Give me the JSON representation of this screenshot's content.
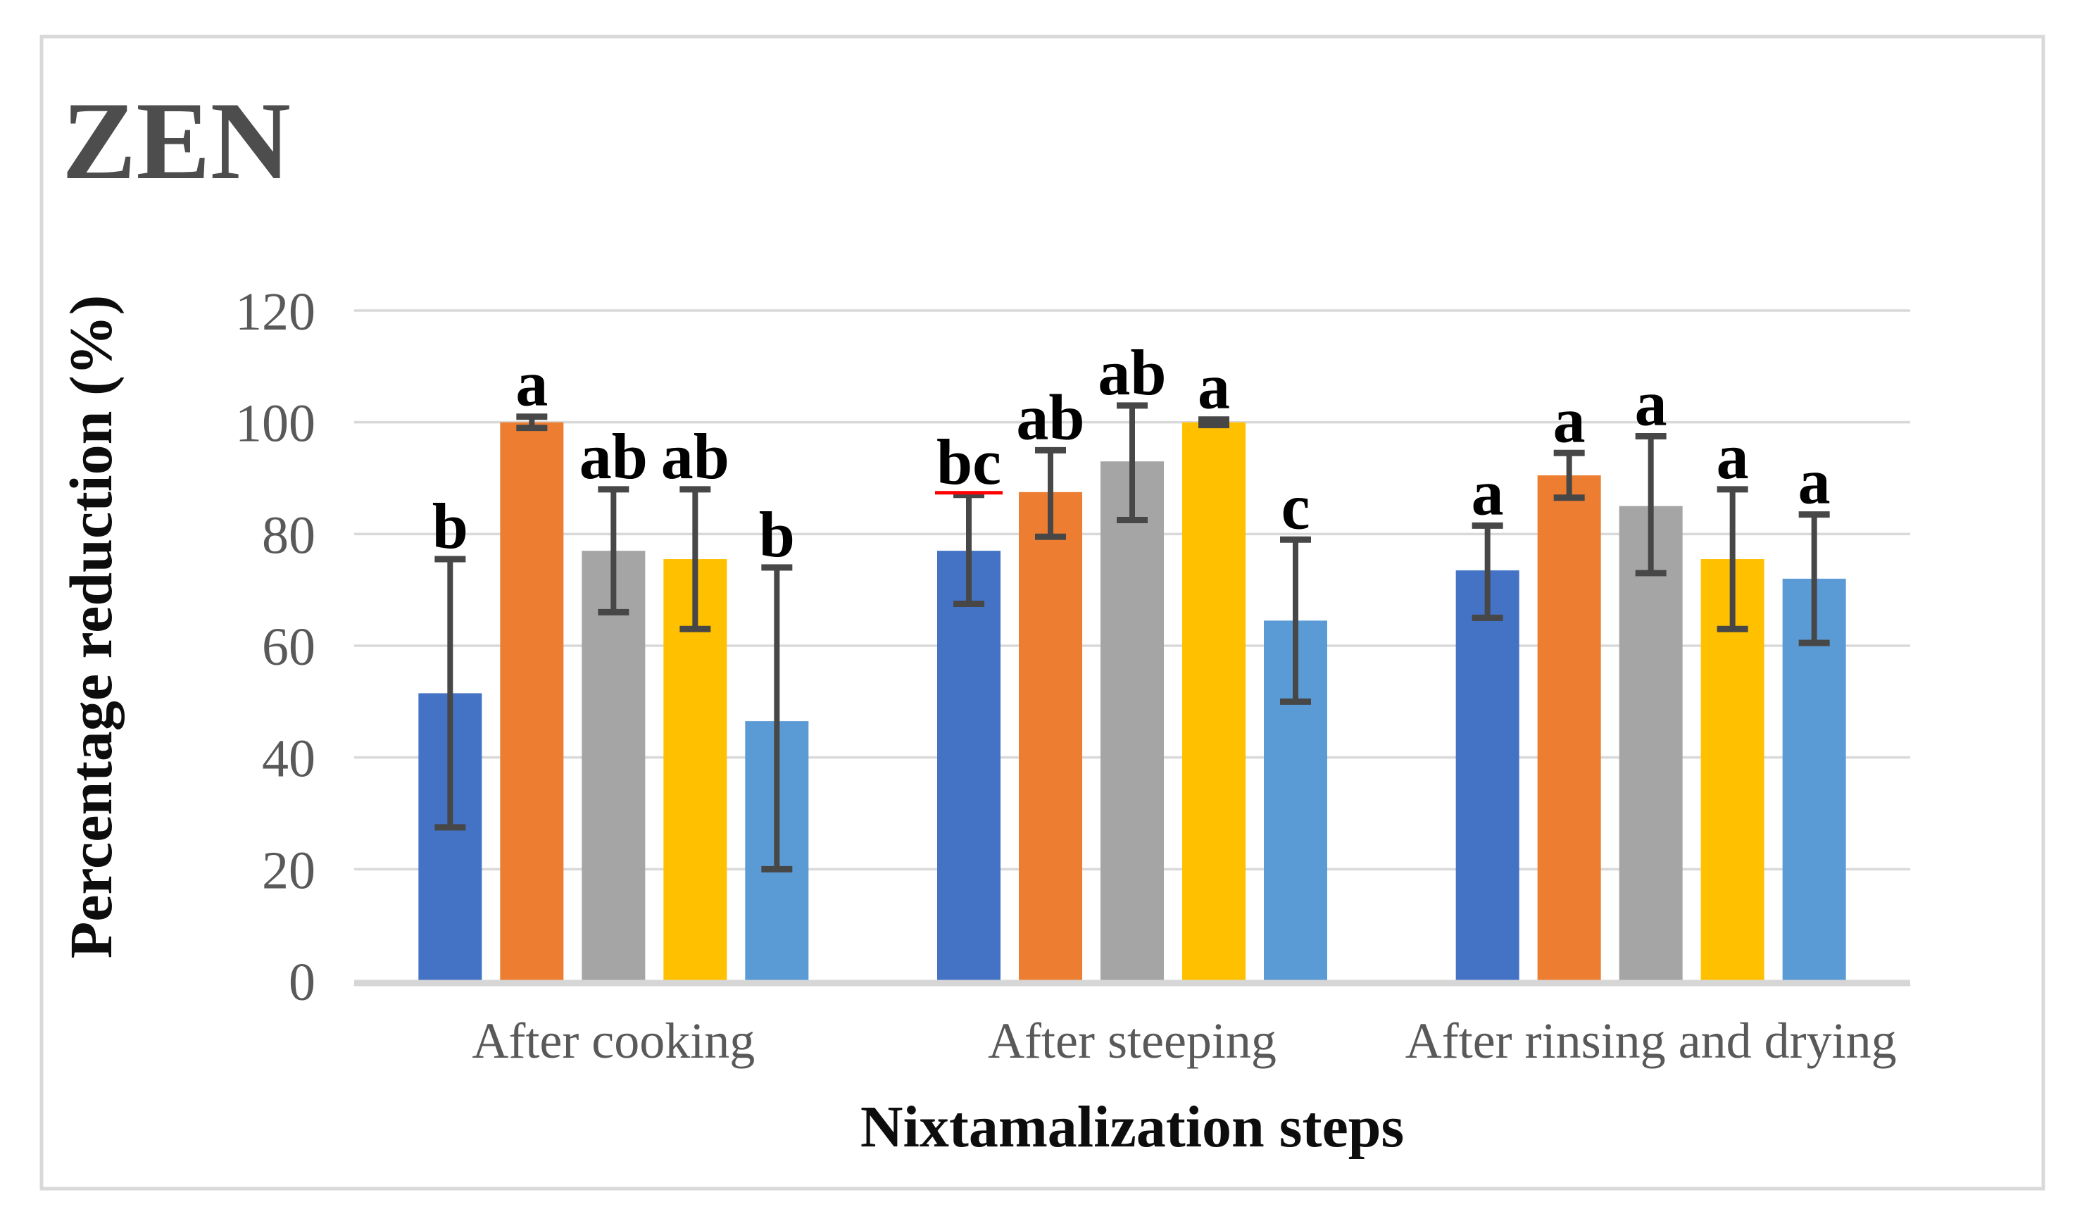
{
  "figure_title": "ZEN",
  "chart_data": {
    "type": "bar",
    "title": "ZEN",
    "xlabel": "Nixtamalization steps",
    "ylabel": "Percentage reduction (%)",
    "ylim": [
      0,
      120
    ],
    "yticks": [
      0,
      20,
      40,
      60,
      80,
      100,
      120
    ],
    "grid": true,
    "legend": "none",
    "categories": [
      "After cooking",
      "After steeping",
      "After rinsing and drying"
    ],
    "series": [
      {
        "name": "series-1",
        "color_name": "dark-blue",
        "color": "#4472C4",
        "values": [
          51.5,
          77,
          73.5
        ],
        "error_top": [
          75.5,
          87,
          81.5
        ],
        "error_bottom": [
          27.5,
          67.5,
          65
        ],
        "letters": [
          "b",
          "bc",
          "a"
        ]
      },
      {
        "name": "series-2",
        "color_name": "orange",
        "color": "#ED7D31",
        "values": [
          100,
          87.5,
          90.5
        ],
        "error_top": [
          101,
          95,
          94.5
        ],
        "error_bottom": [
          99,
          79.5,
          86.5
        ],
        "letters": [
          "a",
          "ab",
          "a"
        ]
      },
      {
        "name": "series-3",
        "color_name": "gray",
        "color": "#A5A5A5",
        "values": [
          77,
          93,
          85
        ],
        "error_top": [
          88,
          103,
          97.5
        ],
        "error_bottom": [
          66,
          82.5,
          73
        ],
        "letters": [
          "ab",
          "ab",
          "a"
        ]
      },
      {
        "name": "series-4",
        "color_name": "gold",
        "color": "#FFC000",
        "values": [
          75.5,
          100,
          75.5
        ],
        "error_top": [
          88,
          100.5,
          88
        ],
        "error_bottom": [
          63,
          99.5,
          63
        ],
        "letters": [
          "ab",
          "a",
          "a"
        ]
      },
      {
        "name": "series-5",
        "color_name": "light-blue",
        "color": "#5B9BD5",
        "values": [
          46.5,
          64.5,
          72
        ],
        "error_top": [
          74,
          79,
          83.5
        ],
        "error_bottom": [
          20,
          50,
          60.5
        ],
        "letters": [
          "b",
          "c",
          "a"
        ]
      }
    ],
    "annotations": {
      "spellcheck_underlined_letter": "bc",
      "spellcheck_underline_color": "#FF0000"
    }
  },
  "styles": {
    "error_bar_color": "#474747",
    "gridline_color": "#D9D9D9",
    "axis_line_color": "#D6D6D6",
    "frame_border_color": "#D9D9D9",
    "tick_label_color": "#595959",
    "category_label_color": "#595959",
    "title_color": "#4D4D4D",
    "axis_title_color": "#0D0D0D",
    "letter_color": "#000000",
    "background_color": "#FFFFFF"
  }
}
